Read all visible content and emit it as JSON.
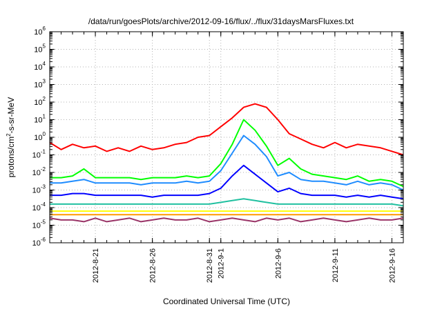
{
  "chart_data": {
    "type": "line",
    "title": "/data/run/goesPlots/archive/2012-09-16/flux/../flux/31daysMarsFluxes.txt",
    "xlabel": "Coordinated Universal Time (UTC)",
    "ylabel": "protons/cm²-s-sr-MeV",
    "ylabel_parts": {
      "pre": "protons/cm",
      "sup": "2",
      "post": "-s-sr-MeV"
    },
    "y_scale": "log",
    "ylim_exp": [
      -6,
      6
    ],
    "ytick_labels": [
      {
        "base": "10",
        "exp": "-6",
        "value_exp": -6
      },
      {
        "base": "10",
        "exp": "-5",
        "value_exp": -5
      },
      {
        "base": "10",
        "exp": "-4",
        "value_exp": -4
      },
      {
        "base": "10",
        "exp": "-3",
        "value_exp": -3
      },
      {
        "base": "10",
        "exp": "-2",
        "value_exp": -2
      },
      {
        "base": "10",
        "exp": "-1",
        "value_exp": -1
      },
      {
        "base": "10",
        "exp": "0",
        "value_exp": 0
      },
      {
        "base": "10",
        "exp": "1",
        "value_exp": 1
      },
      {
        "base": "10",
        "exp": "2",
        "value_exp": 2
      },
      {
        "base": "10",
        "exp": "3",
        "value_exp": 3
      },
      {
        "base": "10",
        "exp": "4",
        "value_exp": 4
      },
      {
        "base": "10",
        "exp": "5",
        "value_exp": 5
      },
      {
        "base": "10",
        "exp": "6",
        "value_exp": 6
      }
    ],
    "xlim": [
      "2012-08-17",
      "2012-09-17"
    ],
    "xtick_labels": [
      {
        "label": "2012-8-21",
        "date": "2012-08-21"
      },
      {
        "label": "2012-8-26",
        "date": "2012-08-26"
      },
      {
        "label": "2012-8-31",
        "date": "2012-08-31"
      },
      {
        "label": "2012-9-1",
        "date": "2012-09-01"
      },
      {
        "label": "2012-9-6",
        "date": "2012-09-06"
      },
      {
        "label": "2012-9-11",
        "date": "2012-09-11"
      },
      {
        "label": "2012-9-16",
        "date": "2012-09-16"
      }
    ],
    "grid": true,
    "series": [
      {
        "color": "#ff0000",
        "x": [
          "2012-08-17",
          "2012-08-18",
          "2012-08-19",
          "2012-08-20",
          "2012-08-21",
          "2012-08-22",
          "2012-08-23",
          "2012-08-24",
          "2012-08-25",
          "2012-08-26",
          "2012-08-27",
          "2012-08-28",
          "2012-08-29",
          "2012-08-30",
          "2012-08-31",
          "2012-09-01",
          "2012-09-02",
          "2012-09-03",
          "2012-09-04",
          "2012-09-05",
          "2012-09-06",
          "2012-09-07",
          "2012-09-08",
          "2012-09-09",
          "2012-09-10",
          "2012-09-11",
          "2012-09-12",
          "2012-09-13",
          "2012-09-14",
          "2012-09-15",
          "2012-09-16",
          "2012-09-17"
        ],
        "y_exp": [
          -0.3,
          -0.7,
          -0.4,
          -0.6,
          -0.5,
          -0.8,
          -0.6,
          -0.8,
          -0.5,
          -0.7,
          -0.6,
          -0.4,
          -0.3,
          0.0,
          0.1,
          0.6,
          1.1,
          1.7,
          1.9,
          1.7,
          1.0,
          0.2,
          -0.1,
          -0.4,
          -0.6,
          -0.3,
          -0.6,
          -0.4,
          -0.5,
          -0.6,
          -0.8,
          -1.0
        ]
      },
      {
        "color": "#00ff00",
        "x": [
          "2012-08-17",
          "2012-08-18",
          "2012-08-19",
          "2012-08-20",
          "2012-08-21",
          "2012-08-22",
          "2012-08-23",
          "2012-08-24",
          "2012-08-25",
          "2012-08-26",
          "2012-08-27",
          "2012-08-28",
          "2012-08-29",
          "2012-08-30",
          "2012-08-31",
          "2012-09-01",
          "2012-09-02",
          "2012-09-03",
          "2012-09-04",
          "2012-09-05",
          "2012-09-06",
          "2012-09-07",
          "2012-09-08",
          "2012-09-09",
          "2012-09-10",
          "2012-09-11",
          "2012-09-12",
          "2012-09-13",
          "2012-09-14",
          "2012-09-15",
          "2012-09-16",
          "2012-09-17"
        ],
        "y_exp": [
          -2.3,
          -2.3,
          -2.2,
          -1.8,
          -2.3,
          -2.3,
          -2.3,
          -2.3,
          -2.4,
          -2.3,
          -2.3,
          -2.3,
          -2.2,
          -2.3,
          -2.2,
          -1.5,
          -0.4,
          1.0,
          0.4,
          -0.5,
          -1.6,
          -1.2,
          -1.8,
          -2.1,
          -2.2,
          -2.3,
          -2.4,
          -2.2,
          -2.5,
          -2.4,
          -2.5,
          -2.8
        ]
      },
      {
        "color": "#1e8cff",
        "x": [
          "2012-08-17",
          "2012-08-18",
          "2012-08-19",
          "2012-08-20",
          "2012-08-21",
          "2012-08-22",
          "2012-08-23",
          "2012-08-24",
          "2012-08-25",
          "2012-08-26",
          "2012-08-27",
          "2012-08-28",
          "2012-08-29",
          "2012-08-30",
          "2012-08-31",
          "2012-09-01",
          "2012-09-02",
          "2012-09-03",
          "2012-09-04",
          "2012-09-05",
          "2012-09-06",
          "2012-09-07",
          "2012-09-08",
          "2012-09-09",
          "2012-09-10",
          "2012-09-11",
          "2012-09-12",
          "2012-09-13",
          "2012-09-14",
          "2012-09-15",
          "2012-09-16",
          "2012-09-17"
        ],
        "y_exp": [
          -2.6,
          -2.6,
          -2.5,
          -2.4,
          -2.6,
          -2.6,
          -2.6,
          -2.6,
          -2.7,
          -2.6,
          -2.6,
          -2.6,
          -2.5,
          -2.6,
          -2.5,
          -1.9,
          -0.9,
          0.1,
          -0.4,
          -1.1,
          -2.2,
          -2.0,
          -2.4,
          -2.5,
          -2.5,
          -2.6,
          -2.7,
          -2.5,
          -2.7,
          -2.6,
          -2.7,
          -3.0
        ]
      },
      {
        "color": "#0000ff",
        "x": [
          "2012-08-17",
          "2012-08-18",
          "2012-08-19",
          "2012-08-20",
          "2012-08-21",
          "2012-08-22",
          "2012-08-23",
          "2012-08-24",
          "2012-08-25",
          "2012-08-26",
          "2012-08-27",
          "2012-08-28",
          "2012-08-29",
          "2012-08-30",
          "2012-08-31",
          "2012-09-01",
          "2012-09-02",
          "2012-09-03",
          "2012-09-04",
          "2012-09-05",
          "2012-09-06",
          "2012-09-07",
          "2012-09-08",
          "2012-09-09",
          "2012-09-10",
          "2012-09-11",
          "2012-09-12",
          "2012-09-13",
          "2012-09-14",
          "2012-09-15",
          "2012-09-16",
          "2012-09-17"
        ],
        "y_exp": [
          -3.3,
          -3.3,
          -3.2,
          -3.2,
          -3.3,
          -3.3,
          -3.3,
          -3.3,
          -3.3,
          -3.4,
          -3.3,
          -3.3,
          -3.3,
          -3.3,
          -3.2,
          -2.9,
          -2.2,
          -1.6,
          -2.1,
          -2.6,
          -3.1,
          -2.9,
          -3.2,
          -3.3,
          -3.3,
          -3.3,
          -3.4,
          -3.3,
          -3.4,
          -3.3,
          -3.4,
          -3.5
        ]
      },
      {
        "color": "#20c0a0",
        "x": [
          "2012-08-17",
          "2012-08-18",
          "2012-08-19",
          "2012-08-20",
          "2012-08-21",
          "2012-08-22",
          "2012-08-23",
          "2012-08-24",
          "2012-08-25",
          "2012-08-26",
          "2012-08-27",
          "2012-08-28",
          "2012-08-29",
          "2012-08-30",
          "2012-08-31",
          "2012-09-01",
          "2012-09-02",
          "2012-09-03",
          "2012-09-04",
          "2012-09-05",
          "2012-09-06",
          "2012-09-07",
          "2012-09-08",
          "2012-09-09",
          "2012-09-10",
          "2012-09-11",
          "2012-09-12",
          "2012-09-13",
          "2012-09-14",
          "2012-09-15",
          "2012-09-16",
          "2012-09-17"
        ],
        "y_exp": [
          -3.8,
          -3.8,
          -3.8,
          -3.8,
          -3.8,
          -3.8,
          -3.8,
          -3.8,
          -3.8,
          -3.8,
          -3.8,
          -3.8,
          -3.8,
          -3.8,
          -3.8,
          -3.7,
          -3.6,
          -3.5,
          -3.6,
          -3.7,
          -3.8,
          -3.8,
          -3.8,
          -3.8,
          -3.8,
          -3.8,
          -3.8,
          -3.8,
          -3.8,
          -3.8,
          -3.8,
          -3.9
        ]
      },
      {
        "color": "#ffff00",
        "x": [
          "2012-08-17",
          "2012-08-18",
          "2012-08-19",
          "2012-08-20",
          "2012-08-21",
          "2012-08-22",
          "2012-08-23",
          "2012-08-24",
          "2012-08-25",
          "2012-08-26",
          "2012-08-27",
          "2012-08-28",
          "2012-08-29",
          "2012-08-30",
          "2012-08-31",
          "2012-09-01",
          "2012-09-02",
          "2012-09-03",
          "2012-09-04",
          "2012-09-05",
          "2012-09-06",
          "2012-09-07",
          "2012-09-08",
          "2012-09-09",
          "2012-09-10",
          "2012-09-11",
          "2012-09-12",
          "2012-09-13",
          "2012-09-14",
          "2012-09-15",
          "2012-09-16",
          "2012-09-17"
        ],
        "y_exp": [
          -4.2,
          -4.2,
          -4.2,
          -4.2,
          -4.2,
          -4.2,
          -4.2,
          -4.2,
          -4.2,
          -4.2,
          -4.2,
          -4.2,
          -4.2,
          -4.2,
          -4.2,
          -4.2,
          -4.2,
          -4.2,
          -4.2,
          -4.2,
          -4.2,
          -4.2,
          -4.2,
          -4.2,
          -4.2,
          -4.2,
          -4.2,
          -4.2,
          -4.2,
          -4.2,
          -4.2,
          -4.2
        ]
      },
      {
        "color": "#ff9900",
        "x": [
          "2012-08-17",
          "2012-08-18",
          "2012-08-19",
          "2012-08-20",
          "2012-08-21",
          "2012-08-22",
          "2012-08-23",
          "2012-08-24",
          "2012-08-25",
          "2012-08-26",
          "2012-08-27",
          "2012-08-28",
          "2012-08-29",
          "2012-08-30",
          "2012-08-31",
          "2012-09-01",
          "2012-09-02",
          "2012-09-03",
          "2012-09-04",
          "2012-09-05",
          "2012-09-06",
          "2012-09-07",
          "2012-09-08",
          "2012-09-09",
          "2012-09-10",
          "2012-09-11",
          "2012-09-12",
          "2012-09-13",
          "2012-09-14",
          "2012-09-15",
          "2012-09-16",
          "2012-09-17"
        ],
        "y_exp": [
          -4.4,
          -4.4,
          -4.4,
          -4.4,
          -4.4,
          -4.4,
          -4.4,
          -4.4,
          -4.4,
          -4.4,
          -4.4,
          -4.4,
          -4.4,
          -4.4,
          -4.4,
          -4.4,
          -4.4,
          -4.4,
          -4.4,
          -4.4,
          -4.4,
          -4.4,
          -4.4,
          -4.4,
          -4.4,
          -4.4,
          -4.4,
          -4.4,
          -4.4,
          -4.4,
          -4.4,
          -4.4
        ]
      },
      {
        "color": "#993366",
        "x": [
          "2012-08-17",
          "2012-08-18",
          "2012-08-19",
          "2012-08-20",
          "2012-08-21",
          "2012-08-22",
          "2012-08-23",
          "2012-08-24",
          "2012-08-25",
          "2012-08-26",
          "2012-08-27",
          "2012-08-28",
          "2012-08-29",
          "2012-08-30",
          "2012-08-31",
          "2012-09-01",
          "2012-09-02",
          "2012-09-03",
          "2012-09-04",
          "2012-09-05",
          "2012-09-06",
          "2012-09-07",
          "2012-09-08",
          "2012-09-09",
          "2012-09-10",
          "2012-09-11",
          "2012-09-12",
          "2012-09-13",
          "2012-09-14",
          "2012-09-15",
          "2012-09-16",
          "2012-09-17"
        ],
        "y_exp": [
          -4.6,
          -4.7,
          -4.7,
          -4.8,
          -4.6,
          -4.8,
          -4.7,
          -4.6,
          -4.8,
          -4.7,
          -4.6,
          -4.7,
          -4.7,
          -4.6,
          -4.8,
          -4.7,
          -4.6,
          -4.7,
          -4.8,
          -4.6,
          -4.7,
          -4.6,
          -4.8,
          -4.7,
          -4.6,
          -4.7,
          -4.8,
          -4.7,
          -4.6,
          -4.7,
          -4.7,
          -4.6
        ]
      }
    ]
  }
}
